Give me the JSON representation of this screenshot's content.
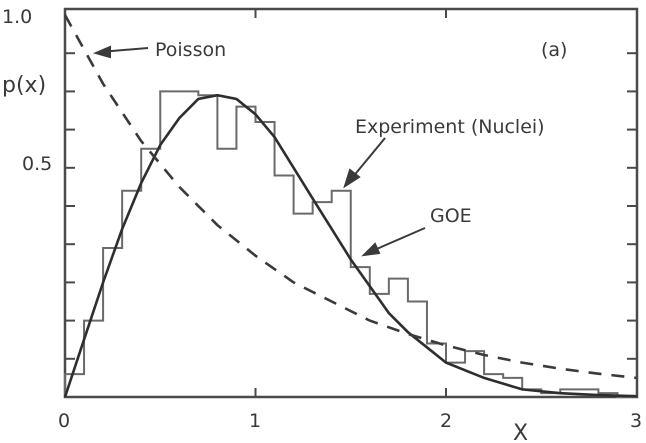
{
  "chart_data": {
    "type": "line",
    "panel_label": "(a)",
    "title": "",
    "xlabel": "X",
    "ylabel": "p(x)",
    "xlim": [
      0,
      3
    ],
    "ylim": [
      0,
      1.0
    ],
    "x_ticks": [
      0,
      1,
      2,
      3
    ],
    "x_tick_labels": [
      "0",
      "1",
      "2",
      "3"
    ],
    "y_tick_labels": [
      {
        "label": "1.0",
        "pos_value": 1.0
      },
      {
        "label": "0.5",
        "pos_value": 0.615
      }
    ],
    "grid": false,
    "legend": "annotations with arrows",
    "series": [
      {
        "name": "Experiment (Nuclei)",
        "style": "step histogram",
        "bin_width": 0.1,
        "bin_starts": [
          0.0,
          0.1,
          0.2,
          0.3,
          0.4,
          0.5,
          0.6,
          0.7,
          0.8,
          0.9,
          1.0,
          1.1,
          1.2,
          1.3,
          1.4,
          1.5,
          1.6,
          1.7,
          1.8,
          1.9,
          2.0,
          2.1,
          2.2,
          2.3,
          2.4,
          2.5,
          2.6,
          2.7,
          2.8,
          2.9
        ],
        "values": [
          0.06,
          0.2,
          0.39,
          0.54,
          0.65,
          0.8,
          0.8,
          0.79,
          0.65,
          0.76,
          0.72,
          0.58,
          0.48,
          0.51,
          0.54,
          0.34,
          0.27,
          0.31,
          0.25,
          0.14,
          0.09,
          0.12,
          0.06,
          0.05,
          0.02,
          0.01,
          0.02,
          0.02,
          0.01,
          0.0
        ]
      },
      {
        "name": "GOE",
        "style": "solid line",
        "x": [
          0,
          0.1,
          0.2,
          0.3,
          0.4,
          0.5,
          0.6,
          0.7,
          0.8,
          0.9,
          1.0,
          1.1,
          1.2,
          1.3,
          1.4,
          1.5,
          1.6,
          1.7,
          1.8,
          1.9,
          2.0,
          2.2,
          2.4,
          2.6,
          2.8,
          3.0
        ],
        "values": [
          0,
          0.15,
          0.3,
          0.44,
          0.56,
          0.66,
          0.73,
          0.78,
          0.79,
          0.78,
          0.74,
          0.68,
          0.6,
          0.52,
          0.44,
          0.36,
          0.29,
          0.22,
          0.17,
          0.13,
          0.09,
          0.05,
          0.02,
          0.01,
          0.005,
          0.002
        ]
      },
      {
        "name": "Poisson",
        "style": "dashed line",
        "x": [
          0,
          0.2,
          0.4,
          0.6,
          0.8,
          1.0,
          1.2,
          1.4,
          1.6,
          1.8,
          2.0,
          2.2,
          2.4,
          2.6,
          2.8,
          3.0
        ],
        "values": [
          1.0,
          0.82,
          0.67,
          0.55,
          0.45,
          0.37,
          0.3,
          0.25,
          0.2,
          0.165,
          0.135,
          0.11,
          0.09,
          0.074,
          0.061,
          0.05
        ]
      }
    ],
    "annotations": [
      {
        "text": "Poisson",
        "arrow_to": "Poisson curve near x=0.1"
      },
      {
        "text": "Experiment (Nuclei)",
        "arrow_to": "histogram near x=1.5"
      },
      {
        "text": "GOE",
        "arrow_to": "solid curve near x=1.6"
      },
      {
        "text": "(a)"
      }
    ]
  }
}
